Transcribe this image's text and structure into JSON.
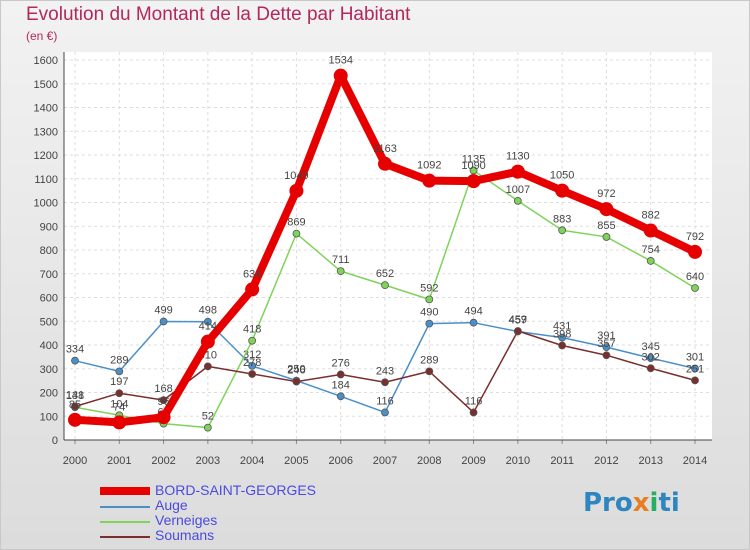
{
  "chart_data": {
    "type": "line",
    "title": "Evolution du Montant de la Dette par Habitant",
    "subtitle": "(en €)",
    "categories": [
      "2000",
      "2001",
      "2002",
      "2003",
      "2004",
      "2005",
      "2006",
      "2007",
      "2008",
      "2009",
      "2010",
      "2011",
      "2012",
      "2013",
      "2014"
    ],
    "ylim": [
      0,
      1600
    ],
    "yticks": [
      0,
      100,
      200,
      300,
      400,
      500,
      600,
      700,
      800,
      900,
      1000,
      1100,
      1200,
      1300,
      1400,
      1500,
      1600
    ],
    "grid": true,
    "legend_position": "bottom-left",
    "series": [
      {
        "name": "BORD-SAINT-GEORGES",
        "color": "#e60000",
        "values": [
          85,
          74,
          96,
          414,
          634,
          1049,
          1534,
          1163,
          1092,
          1090,
          1130,
          1050,
          972,
          882,
          792
        ],
        "labels": [
          "85",
          "74",
          "96",
          "414",
          "634",
          "1049",
          "1534",
          "1163",
          "1092",
          "1090",
          "1130",
          "1050",
          "972",
          "882",
          "792"
        ]
      },
      {
        "name": "Auge",
        "color": "#4a90c8",
        "values": [
          334,
          289,
          499,
          498,
          312,
          250,
          184,
          116,
          490,
          494,
          457,
          431,
          391,
          345,
          301
        ],
        "labels": [
          "334",
          "289",
          "499",
          "498",
          "312",
          "250",
          "184",
          "116",
          "490",
          "494",
          "457",
          "431",
          "391",
          "345",
          "301"
        ]
      },
      {
        "name": "Verneiges",
        "color": "#7fd35a",
        "values": [
          138,
          104,
          69,
          52,
          418,
          869,
          711,
          652,
          592,
          1135,
          1007,
          883,
          855,
          754,
          640
        ],
        "labels": [
          "138",
          "104",
          "69",
          "52",
          "418",
          "869",
          "711",
          "652",
          "592",
          "1135",
          "1007",
          "883",
          "855",
          "754",
          "640"
        ]
      },
      {
        "name": "Soumans",
        "color": "#7a2e2e",
        "values": [
          141,
          197,
          168,
          310,
          278,
          246,
          276,
          243,
          289,
          116,
          459,
          398,
          357,
          302,
          251
        ],
        "labels": [
          "141",
          "197",
          "168",
          "310",
          "278",
          "246",
          "276",
          "243",
          "289",
          "116",
          "459",
          "398",
          "357",
          "302",
          "251"
        ]
      }
    ]
  },
  "logo": {
    "parts": [
      "Pro",
      "x",
      "i",
      "ti"
    ]
  }
}
